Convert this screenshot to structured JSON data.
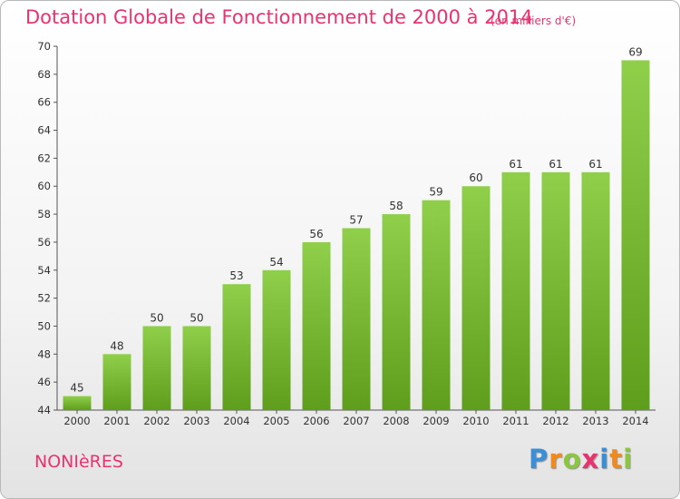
{
  "chart_data": {
    "type": "bar",
    "title": "Dotation Globale de Fonctionnement de 2000 à 2014",
    "unit_note": "(en milliers d'€)",
    "categories": [
      "2000",
      "2001",
      "2002",
      "2003",
      "2004",
      "2005",
      "2006",
      "2007",
      "2008",
      "2009",
      "2010",
      "2011",
      "2012",
      "2013",
      "2014"
    ],
    "values": [
      45,
      48,
      50,
      50,
      53,
      54,
      56,
      57,
      58,
      59,
      60,
      61,
      61,
      61,
      69
    ],
    "ylim": [
      44,
      70
    ],
    "yticks": [
      44,
      46,
      48,
      50,
      52,
      54,
      56,
      58,
      60,
      62,
      64,
      66,
      68,
      70
    ],
    "grid": false,
    "bar_color_top": "#8fcf4a",
    "bar_color_bottom": "#5e9e1c"
  },
  "commune": "NONIèRES",
  "logo": {
    "letters": [
      "P",
      "r",
      "o",
      "x",
      "i",
      "t",
      "i"
    ],
    "colors": [
      "#3a8fd6",
      "#f08a1c",
      "#8cc63f",
      "#e8336f",
      "#3a8fd6",
      "#f08a1c",
      "#8cc63f"
    ]
  }
}
